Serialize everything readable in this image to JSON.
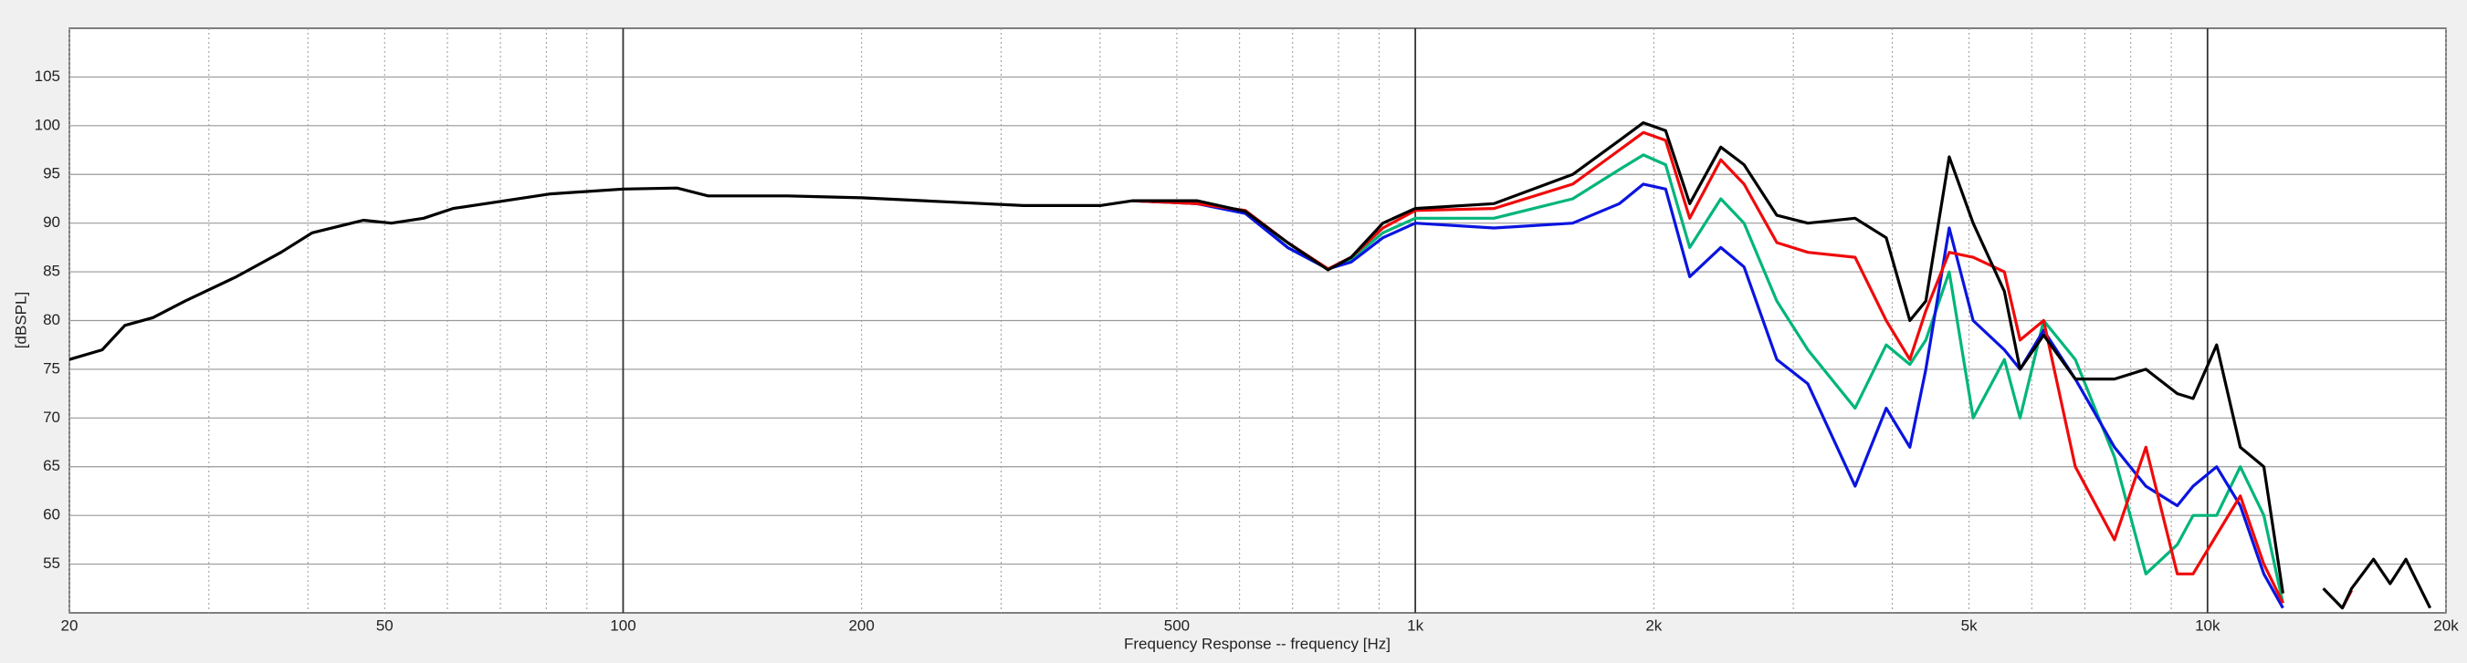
{
  "chart_data": {
    "type": "line",
    "xlabel": "Frequency Response -- frequency [Hz]",
    "ylabel": "[dBSPL]",
    "xscale": "log",
    "grid": true,
    "xlim": [
      20,
      20000
    ],
    "ylim": [
      50,
      110
    ],
    "yticks": [
      55,
      60,
      65,
      70,
      75,
      80,
      85,
      90,
      95,
      100,
      105
    ],
    "xticks": [
      20,
      50,
      100,
      200,
      500,
      {
        "value": 1000,
        "label": "1k"
      },
      {
        "value": 2000,
        "label": "2k"
      },
      {
        "value": 5000,
        "label": "5k"
      },
      {
        "value": 10000,
        "label": "10k"
      },
      {
        "value": 20000,
        "label": "20k"
      }
    ],
    "x_minor_ticks": [
      30,
      40,
      60,
      70,
      80,
      90,
      300,
      400,
      600,
      700,
      800,
      900,
      3000,
      4000,
      6000,
      7000,
      8000,
      9000
    ],
    "x": [
      20,
      22,
      23.5,
      25.5,
      28,
      32.5,
      37,
      40.5,
      47,
      51,
      56,
      61,
      71,
      81,
      100,
      117,
      128,
      161,
      200,
      254,
      320,
      400,
      440,
      530,
      610,
      690,
      776,
      830,
      910,
      1000,
      1257,
      1580,
      1810,
      1940,
      2070,
      2220,
      2430,
      2600,
      2860,
      3130,
      3590,
      3930,
      4210,
      4410,
      4720,
      5060,
      5540,
      5800,
      6210,
      6810,
      7630,
      8360,
      9160,
      9590,
      10270,
      11000,
      11780,
      12450,
      13200,
      14000,
      14800,
      15200,
      16200,
      17000,
      17800,
      19100
    ],
    "series": [
      {
        "color": "#00b57a",
        "values": [
          null,
          null,
          null,
          null,
          null,
          null,
          null,
          null,
          null,
          null,
          null,
          null,
          null,
          null,
          null,
          null,
          null,
          null,
          null,
          null,
          null,
          null,
          92.3,
          92,
          91.3,
          87.5,
          85.3,
          86.3,
          89,
          90.5,
          90.5,
          92.5,
          95.5,
          97,
          96,
          87.5,
          92.5,
          90,
          82,
          77,
          71,
          77.5,
          75.5,
          78,
          85,
          70,
          76,
          70,
          80,
          76,
          66,
          54,
          57,
          60,
          60,
          65,
          60,
          51,
          null,
          null,
          null,
          null,
          null,
          null,
          null,
          null
        ]
      },
      {
        "color": "#0a14e0",
        "values": [
          null,
          null,
          null,
          null,
          null,
          null,
          null,
          null,
          null,
          null,
          null,
          null,
          null,
          null,
          null,
          null,
          null,
          null,
          null,
          null,
          null,
          null,
          92.3,
          92,
          91,
          87.5,
          85.3,
          86,
          88.5,
          90,
          89.5,
          90,
          92,
          94,
          93.5,
          84.5,
          87.5,
          85.5,
          76,
          73.5,
          63,
          71,
          67,
          75,
          89.5,
          80,
          77,
          75,
          79,
          74,
          67,
          63,
          61,
          63,
          65,
          61,
          54,
          50.5,
          null,
          null,
          null,
          null,
          null,
          null,
          null,
          null
        ]
      },
      {
        "color": "#f00a0a",
        "values": [
          null,
          null,
          null,
          null,
          null,
          null,
          null,
          null,
          null,
          null,
          null,
          null,
          null,
          null,
          null,
          null,
          null,
          null,
          null,
          null,
          null,
          null,
          92.3,
          92,
          91.3,
          88,
          85.3,
          86.5,
          89.5,
          91.3,
          91.5,
          94,
          97.5,
          99.3,
          98.5,
          90.5,
          96.5,
          94,
          88,
          87,
          86.5,
          80,
          76,
          81,
          87,
          86.5,
          85,
          78,
          80,
          65,
          57.5,
          67,
          54,
          54,
          58,
          62,
          55,
          51,
          null,
          null,
          50.5,
          52.3,
          null,
          null,
          null,
          null
        ]
      },
      {
        "color": "#000000",
        "values": [
          76,
          77,
          79.5,
          80.3,
          82,
          84.5,
          87,
          89,
          90.3,
          90,
          90.5,
          91.5,
          92.3,
          93,
          93.5,
          93.6,
          92.8,
          92.8,
          92.6,
          92.2,
          91.8,
          91.8,
          92.3,
          92.3,
          91.2,
          88,
          85.2,
          86.5,
          90,
          91.5,
          92,
          95,
          98.5,
          100.3,
          99.5,
          92,
          97.8,
          96,
          90.8,
          90,
          90.5,
          88.5,
          80,
          82,
          96.8,
          90,
          83,
          75,
          78.5,
          74,
          74,
          75,
          72.5,
          72,
          77.5,
          67,
          65,
          52,
          null,
          52.5,
          50.5,
          52.5,
          55.5,
          53,
          55.5,
          50.5
        ]
      }
    ]
  }
}
